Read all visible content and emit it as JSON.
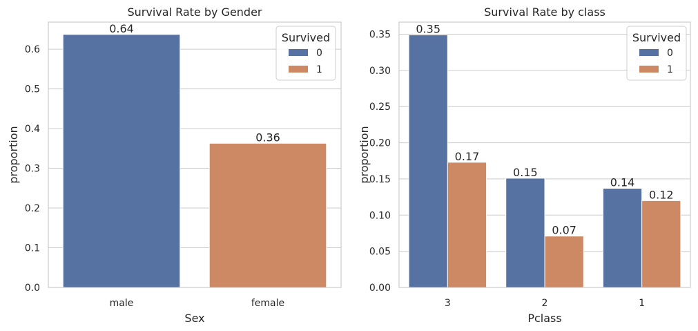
{
  "chart_data": [
    {
      "type": "bar",
      "title": "Survival Rate by Gender",
      "xlabel": "Sex",
      "ylabel": "proportion",
      "categories": [
        "male",
        "female"
      ],
      "ylim": [
        0,
        0.668
      ],
      "yticks": [
        0.0,
        0.1,
        0.2,
        0.3,
        0.4,
        0.5,
        0.6
      ],
      "ytick_labels": [
        "0.0",
        "0.1",
        "0.2",
        "0.3",
        "0.4",
        "0.5",
        "0.6"
      ],
      "grid": true,
      "legend": {
        "title": "Survived",
        "entries": [
          "0",
          "1"
        ],
        "placement": "top-right"
      },
      "series": [
        {
          "name": "0",
          "color": "#5572a3",
          "values": [
            0.637,
            0
          ]
        },
        {
          "name": "1",
          "color": "#cc8963",
          "values": [
            0,
            0.363
          ]
        }
      ],
      "bar_labels": [
        {
          "series": 0,
          "category": 0,
          "text": "0.64"
        },
        {
          "series": 1,
          "category": 1,
          "text": "0.36"
        }
      ]
    },
    {
      "type": "bar",
      "title": "Survival Rate by class",
      "xlabel": "Pclass",
      "ylabel": "proportion",
      "categories": [
        "3",
        "2",
        "1"
      ],
      "ylim": [
        0,
        0.3667
      ],
      "yticks": [
        0.0,
        0.05,
        0.1,
        0.15,
        0.2,
        0.25,
        0.3,
        0.35
      ],
      "ytick_labels": [
        "0.00",
        "0.05",
        "0.10",
        "0.15",
        "0.20",
        "0.25",
        "0.30",
        "0.35"
      ],
      "grid": true,
      "legend": {
        "title": "Survived",
        "entries": [
          "0",
          "1"
        ],
        "placement": "top-right"
      },
      "series": [
        {
          "name": "0",
          "color": "#5572a3",
          "values": [
            0.349,
            0.151,
            0.137
          ]
        },
        {
          "name": "1",
          "color": "#cc8963",
          "values": [
            0.173,
            0.071,
            0.12
          ]
        }
      ],
      "bar_labels": [
        {
          "series": 0,
          "category": 0,
          "text": "0.35"
        },
        {
          "series": 1,
          "category": 0,
          "text": "0.17"
        },
        {
          "series": 0,
          "category": 1,
          "text": "0.15"
        },
        {
          "series": 1,
          "category": 1,
          "text": "0.07"
        },
        {
          "series": 0,
          "category": 2,
          "text": "0.14"
        },
        {
          "series": 1,
          "category": 2,
          "text": "0.12"
        }
      ]
    }
  ]
}
